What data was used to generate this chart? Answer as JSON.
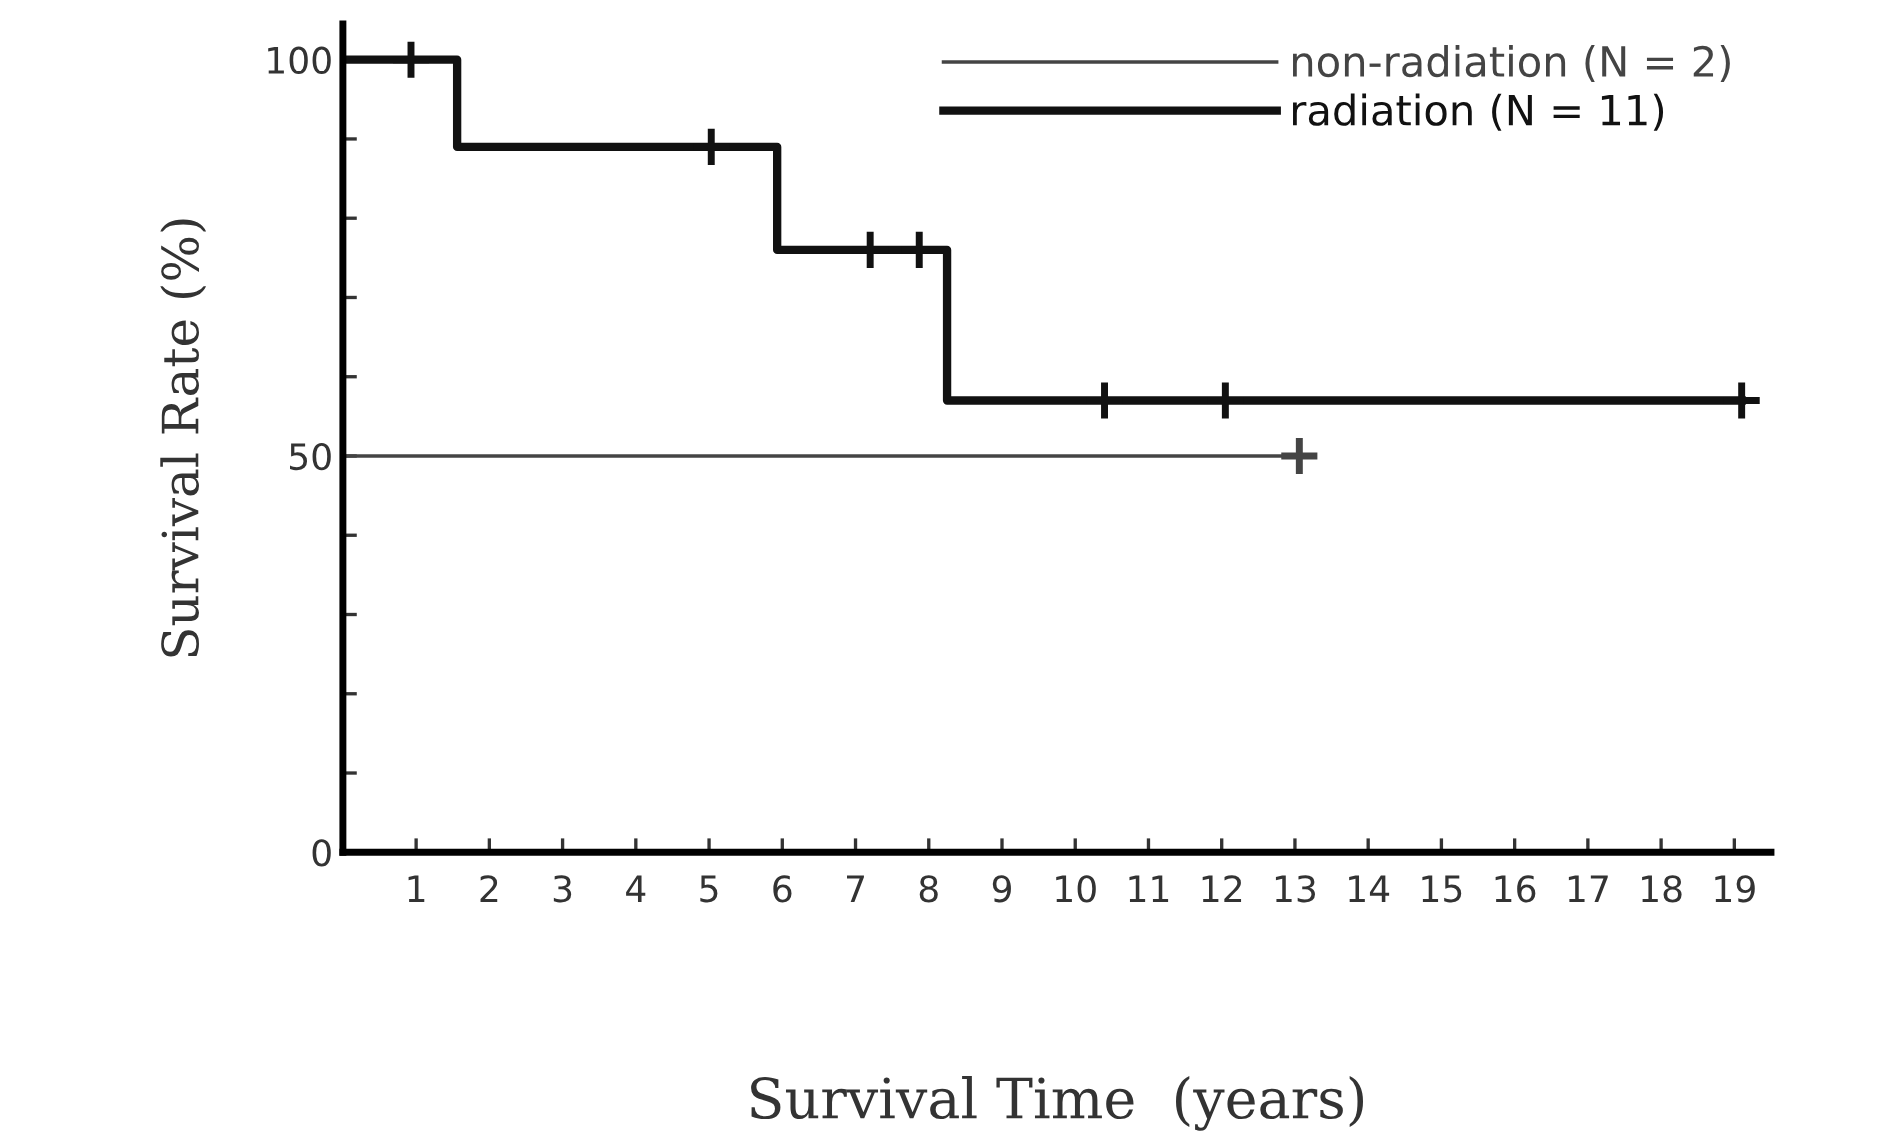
{
  "chart_data": {
    "type": "step",
    "xlabel": "Survival Time  (years)",
    "ylabel": "Survival Rate (%)",
    "xlim": [
      0,
      19.5
    ],
    "ylim": [
      0,
      104.5
    ],
    "xticks": [
      1,
      2,
      3,
      4,
      5,
      6,
      7,
      8,
      9,
      10,
      11,
      12,
      13,
      14,
      15,
      16,
      17,
      18,
      19
    ],
    "yticks": [
      0,
      {
        "value": 10,
        "label": null
      },
      {
        "value": 20,
        "label": null
      },
      {
        "value": 30,
        "label": null
      },
      {
        "value": 40,
        "label": null
      },
      50,
      {
        "value": 60,
        "label": null
      },
      {
        "value": 70,
        "label": null
      },
      {
        "value": 80,
        "label": null
      },
      {
        "value": 90,
        "label": null
      },
      100
    ],
    "grid": false,
    "legend": "top right",
    "line_style": "solid",
    "series": [
      {
        "name": "non-radiation (N = 2)",
        "color": "#444444",
        "x": [
          0,
          13.06
        ],
        "values": [
          50,
          50
        ]
      },
      {
        "name": "radiation (N = 11)",
        "color": "#111111",
        "x": [
          0,
          1.56,
          5.93,
          8.25,
          19.1
        ],
        "values": [
          100,
          89,
          76,
          57,
          57
        ]
      },
      {
        "type": "scatter",
        "color": "#111111",
        "marker": "cross",
        "x": [
          0.93,
          5.03,
          7.2,
          7.87,
          10.4,
          12.05,
          19.1
        ],
        "values": [
          100,
          89,
          76,
          76,
          57,
          57,
          57
        ]
      },
      {
        "type": "scatter",
        "color": "#444444",
        "marker": "cross",
        "x": [
          13.06
        ],
        "values": [
          50
        ]
      }
    ]
  }
}
